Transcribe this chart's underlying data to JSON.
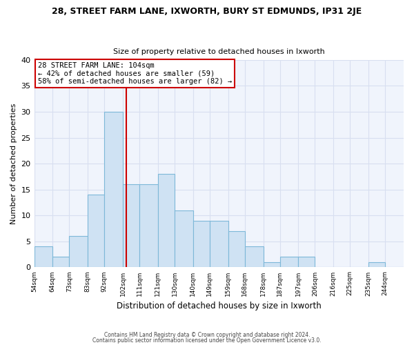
{
  "title1": "28, STREET FARM LANE, IXWORTH, BURY ST EDMUNDS, IP31 2JE",
  "title2": "Size of property relative to detached houses in Ixworth",
  "xlabel": "Distribution of detached houses by size in Ixworth",
  "ylabel": "Number of detached properties",
  "bar_color": "#cfe2f3",
  "bar_edge_color": "#7db8d8",
  "bin_labels": [
    "54sqm",
    "64sqm",
    "73sqm",
    "83sqm",
    "92sqm",
    "102sqm",
    "111sqm",
    "121sqm",
    "130sqm",
    "140sqm",
    "149sqm",
    "159sqm",
    "168sqm",
    "178sqm",
    "187sqm",
    "197sqm",
    "206sqm",
    "216sqm",
    "225sqm",
    "235sqm",
    "244sqm"
  ],
  "bin_left_edges": [
    54,
    64,
    73,
    83,
    92,
    102,
    111,
    121,
    130,
    140,
    149,
    159,
    168,
    178,
    187,
    197,
    206,
    216,
    225,
    235,
    244
  ],
  "bin_widths": [
    10,
    9,
    10,
    9,
    10,
    9,
    10,
    9,
    10,
    9,
    10,
    9,
    10,
    9,
    10,
    9,
    10,
    9,
    10,
    9,
    10
  ],
  "bar_heights": [
    4,
    2,
    6,
    14,
    30,
    16,
    16,
    18,
    11,
    9,
    9,
    7,
    4,
    1,
    2,
    2,
    0,
    0,
    0,
    1,
    0
  ],
  "vline_x": 104,
  "vline_color": "#cc0000",
  "annotation_text": "28 STREET FARM LANE: 104sqm\n← 42% of detached houses are smaller (59)\n58% of semi-detached houses are larger (82) →",
  "annotation_box_color": "#ffffff",
  "annotation_box_edge": "#cc0000",
  "ylim": [
    0,
    40
  ],
  "yticks": [
    0,
    5,
    10,
    15,
    20,
    25,
    30,
    35,
    40
  ],
  "footnote1": "Contains HM Land Registry data © Crown copyright and database right 2024.",
  "footnote2": "Contains public sector information licensed under the Open Government Licence v3.0.",
  "bg_color": "#ffffff",
  "plot_bg_color": "#f0f4fc",
  "grid_color": "#d8dff0"
}
